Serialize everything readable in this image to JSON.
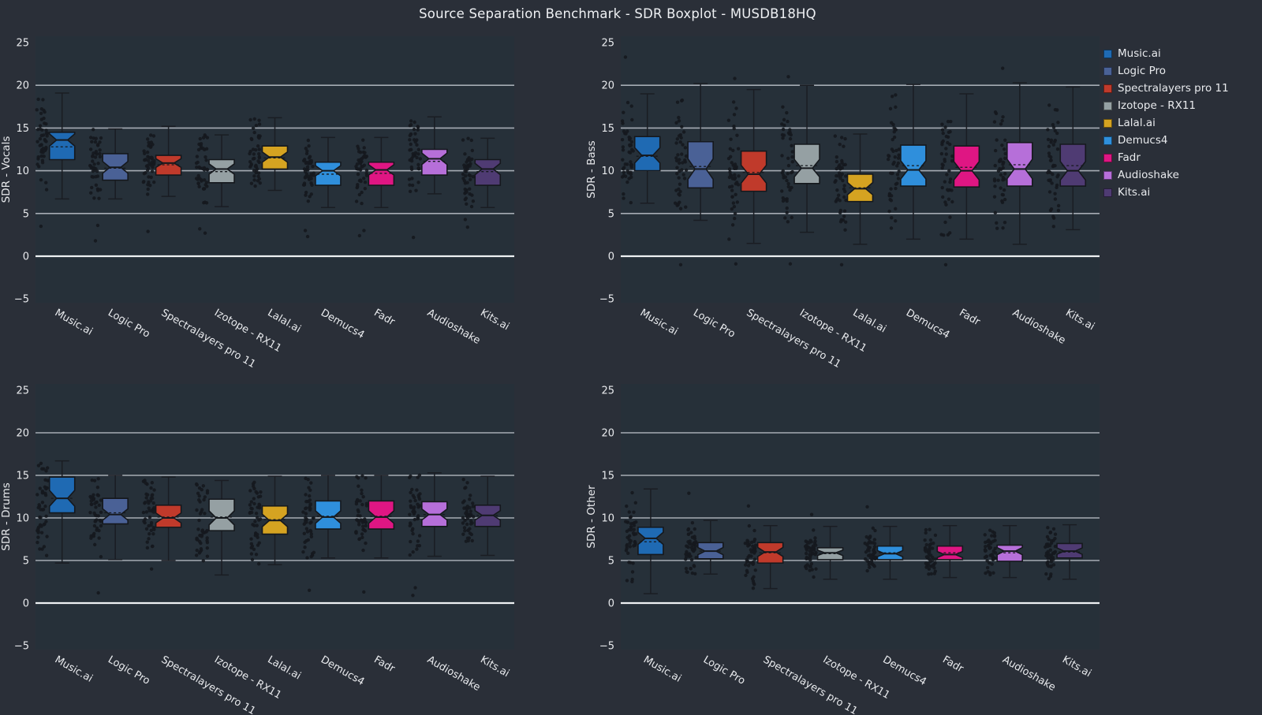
{
  "colors": {
    "figure_bg": "#2a2f38",
    "axes_bg": "#263039",
    "grid": "#a6acb4",
    "zero_line": "#eef1f3",
    "tick_text": "#e8eaed",
    "title_text": "#eef0f3",
    "box_edge": "#15181d",
    "whisker": "#1a1d23",
    "dot": "#15181e"
  },
  "chart_data": {
    "type": "boxplot",
    "suptitle": "Source Separation Benchmark - SDR Boxplot - MUSDB18HQ",
    "layout": "2x2 grid, notched boxplots with strip points, legend top-right",
    "y_ticks": [
      25,
      20,
      15,
      10,
      5,
      0,
      -5
    ],
    "gridlines": [
      20,
      15,
      10,
      5,
      0
    ],
    "tools": [
      {
        "name": "Music.ai",
        "color": "#1f6ab3"
      },
      {
        "name": "Logic Pro",
        "color": "#4a6196"
      },
      {
        "name": "Spectralayers pro 11",
        "color": "#c03a2b"
      },
      {
        "name": "Izotope - RX11",
        "color": "#95a0a3"
      },
      {
        "name": "Lalal.ai",
        "color": "#d5a321"
      },
      {
        "name": "Demucs4",
        "color": "#2f8fdc"
      },
      {
        "name": "Fadr",
        "color": "#df1683"
      },
      {
        "name": "Audioshake",
        "color": "#b66fd9"
      },
      {
        "name": "Kits.ai",
        "color": "#4f3b73"
      }
    ],
    "subplots": [
      {
        "ylabel": "SDR - Vocals",
        "boxes": [
          {
            "tool": "Music.ai",
            "low": 6.7,
            "q1": 11.3,
            "median": 13.6,
            "q3": 14.5,
            "high": 19.1,
            "mean": 12.8,
            "outliers": [
              3.5
            ]
          },
          {
            "tool": "Logic Pro",
            "low": 6.7,
            "q1": 8.9,
            "median": 10.4,
            "q3": 12.0,
            "high": 14.9,
            "mean": 10.3,
            "outliers": [
              3.6,
              1.8
            ]
          },
          {
            "tool": "Spectralayers pro 11",
            "low": 7.0,
            "q1": 9.5,
            "median": 10.9,
            "q3": 11.8,
            "high": 15.2,
            "mean": 10.7,
            "outliers": [
              2.9
            ]
          },
          {
            "tool": "Izotope - RX11",
            "low": 5.8,
            "q1": 8.6,
            "median": 10.2,
            "q3": 11.3,
            "high": 14.2,
            "mean": 9.9,
            "outliers": [
              3.2,
              2.7
            ]
          },
          {
            "tool": "Lalal.ai",
            "low": 7.7,
            "q1": 10.2,
            "median": 11.6,
            "q3": 12.9,
            "high": 16.2,
            "mean": 11.5,
            "outliers": []
          },
          {
            "tool": "Demucs4",
            "low": 5.7,
            "q1": 8.3,
            "median": 10.0,
            "q3": 11.0,
            "high": 13.9,
            "mean": 9.6,
            "outliers": [
              3.0,
              2.3
            ]
          },
          {
            "tool": "Fadr",
            "low": 5.7,
            "q1": 8.3,
            "median": 10.1,
            "q3": 11.0,
            "high": 13.9,
            "mean": 9.7,
            "outliers": [
              3.0,
              2.4
            ]
          },
          {
            "tool": "Audioshake",
            "low": 7.3,
            "q1": 9.5,
            "median": 11.4,
            "q3": 12.5,
            "high": 16.3,
            "mean": 11.1,
            "outliers": [
              2.2
            ]
          },
          {
            "tool": "Kits.ai",
            "low": 5.7,
            "q1": 8.3,
            "median": 10.2,
            "q3": 11.3,
            "high": 13.8,
            "mean": 9.9,
            "outliers": [
              4.3,
              3.4
            ]
          }
        ]
      },
      {
        "ylabel": "SDR - Bass",
        "boxes": [
          {
            "tool": "Music.ai",
            "low": 6.2,
            "q1": 10.0,
            "median": 11.8,
            "q3": 14.0,
            "high": 19.0,
            "mean": 11.7,
            "outliers": [
              23.3
            ]
          },
          {
            "tool": "Logic Pro",
            "low": 4.2,
            "q1": 8.0,
            "median": 10.2,
            "q3": 13.4,
            "high": 20.2,
            "mean": 10.5,
            "outliers": [
              -1.0
            ]
          },
          {
            "tool": "Spectralayers pro 11",
            "low": 1.5,
            "q1": 7.6,
            "median": 9.6,
            "q3": 12.3,
            "high": 19.5,
            "mean": 9.8,
            "outliers": [
              20.8,
              -0.9
            ]
          },
          {
            "tool": "Izotope - RX11",
            "low": 2.8,
            "q1": 8.5,
            "median": 10.3,
            "q3": 13.1,
            "high": 20.0,
            "mean": 10.6,
            "outliers": [
              21.0,
              -0.9
            ]
          },
          {
            "tool": "Lalal.ai",
            "low": 1.4,
            "q1": 6.4,
            "median": 7.9,
            "q3": 9.6,
            "high": 14.3,
            "mean": 8.0,
            "outliers": [
              -1.0
            ]
          },
          {
            "tool": "Demucs4",
            "low": 2.0,
            "q1": 8.2,
            "median": 10.1,
            "q3": 13.0,
            "high": 20.1,
            "mean": 10.6,
            "outliers": []
          },
          {
            "tool": "Fadr",
            "low": 2.0,
            "q1": 8.1,
            "median": 10.0,
            "q3": 12.9,
            "high": 19.0,
            "mean": 10.4,
            "outliers": [
              -1.0
            ]
          },
          {
            "tool": "Audioshake",
            "low": 1.4,
            "q1": 8.2,
            "median": 10.2,
            "q3": 13.3,
            "high": 20.3,
            "mean": 10.7,
            "outliers": [
              22.0
            ]
          },
          {
            "tool": "Kits.ai",
            "low": 3.1,
            "q1": 8.2,
            "median": 10.0,
            "q3": 13.1,
            "high": 19.8,
            "mean": 10.6,
            "outliers": []
          }
        ]
      },
      {
        "ylabel": "SDR - Drums",
        "boxes": [
          {
            "tool": "Music.ai",
            "low": 4.7,
            "q1": 10.6,
            "median": 12.3,
            "q3": 14.8,
            "high": 16.7,
            "mean": 12.3,
            "outliers": []
          },
          {
            "tool": "Logic Pro",
            "low": 5.1,
            "q1": 9.3,
            "median": 10.4,
            "q3": 12.3,
            "high": 15.0,
            "mean": 10.6,
            "outliers": [
              1.2
            ]
          },
          {
            "tool": "Spectralayers pro 11",
            "low": 5.0,
            "q1": 8.9,
            "median": 10.0,
            "q3": 11.5,
            "high": 14.8,
            "mean": 10.1,
            "outliers": [
              4.0
            ]
          },
          {
            "tool": "Izotope - RX11",
            "low": 3.3,
            "q1": 8.5,
            "median": 10.0,
            "q3": 12.2,
            "high": 14.4,
            "mean": 10.1,
            "outliers": []
          },
          {
            "tool": "Lalal.ai",
            "low": 4.5,
            "q1": 8.1,
            "median": 9.7,
            "q3": 11.4,
            "high": 14.9,
            "mean": 9.8,
            "outliers": []
          },
          {
            "tool": "Demucs4",
            "low": 5.3,
            "q1": 8.7,
            "median": 10.1,
            "q3": 12.0,
            "high": 15.0,
            "mean": 10.2,
            "outliers": [
              1.5
            ]
          },
          {
            "tool": "Fadr",
            "low": 5.3,
            "q1": 8.7,
            "median": 10.1,
            "q3": 12.0,
            "high": 15.0,
            "mean": 10.2,
            "outliers": [
              1.3
            ]
          },
          {
            "tool": "Audioshake",
            "low": 5.5,
            "q1": 9.0,
            "median": 10.4,
            "q3": 11.9,
            "high": 15.3,
            "mean": 10.4,
            "outliers": [
              1.8,
              0.9
            ]
          },
          {
            "tool": "Kits.ai",
            "low": 5.6,
            "q1": 9.0,
            "median": 10.3,
            "q3": 11.5,
            "high": 14.9,
            "mean": 10.3,
            "outliers": []
          }
        ]
      },
      {
        "ylabel": "SDR - Other",
        "boxes": [
          {
            "tool": "Music.ai",
            "low": 1.1,
            "q1": 5.7,
            "median": 7.6,
            "q3": 8.9,
            "high": 13.4,
            "mean": 7.2,
            "outliers": []
          },
          {
            "tool": "Logic Pro",
            "low": 3.4,
            "q1": 5.2,
            "median": 6.1,
            "q3": 7.1,
            "high": 9.7,
            "mean": 6.1,
            "outliers": [
              12.9
            ]
          },
          {
            "tool": "Spectralayers pro 11",
            "low": 1.7,
            "q1": 4.7,
            "median": 6.0,
            "q3": 7.1,
            "high": 9.1,
            "mean": 5.9,
            "outliers": [
              11.4
            ]
          },
          {
            "tool": "Izotope - RX11",
            "low": 2.8,
            "q1": 5.1,
            "median": 5.9,
            "q3": 6.5,
            "high": 9.0,
            "mean": 5.8,
            "outliers": [
              10.4
            ]
          },
          {
            "tool": "Demucs4",
            "low": 2.8,
            "q1": 5.1,
            "median": 5.8,
            "q3": 6.7,
            "high": 9.0,
            "mean": 5.9,
            "outliers": [
              11.3
            ]
          },
          {
            "tool": "Fadr",
            "low": 3.0,
            "q1": 5.1,
            "median": 5.7,
            "q3": 6.7,
            "high": 9.1,
            "mean": 5.9,
            "outliers": []
          },
          {
            "tool": "Audioshake",
            "low": 3.0,
            "q1": 4.9,
            "median": 6.1,
            "q3": 6.8,
            "high": 9.1,
            "mean": 5.9,
            "outliers": []
          },
          {
            "tool": "Kits.ai",
            "low": 2.8,
            "q1": 5.3,
            "median": 6.1,
            "q3": 7.0,
            "high": 9.2,
            "mean": 6.0,
            "outliers": []
          }
        ]
      }
    ]
  }
}
